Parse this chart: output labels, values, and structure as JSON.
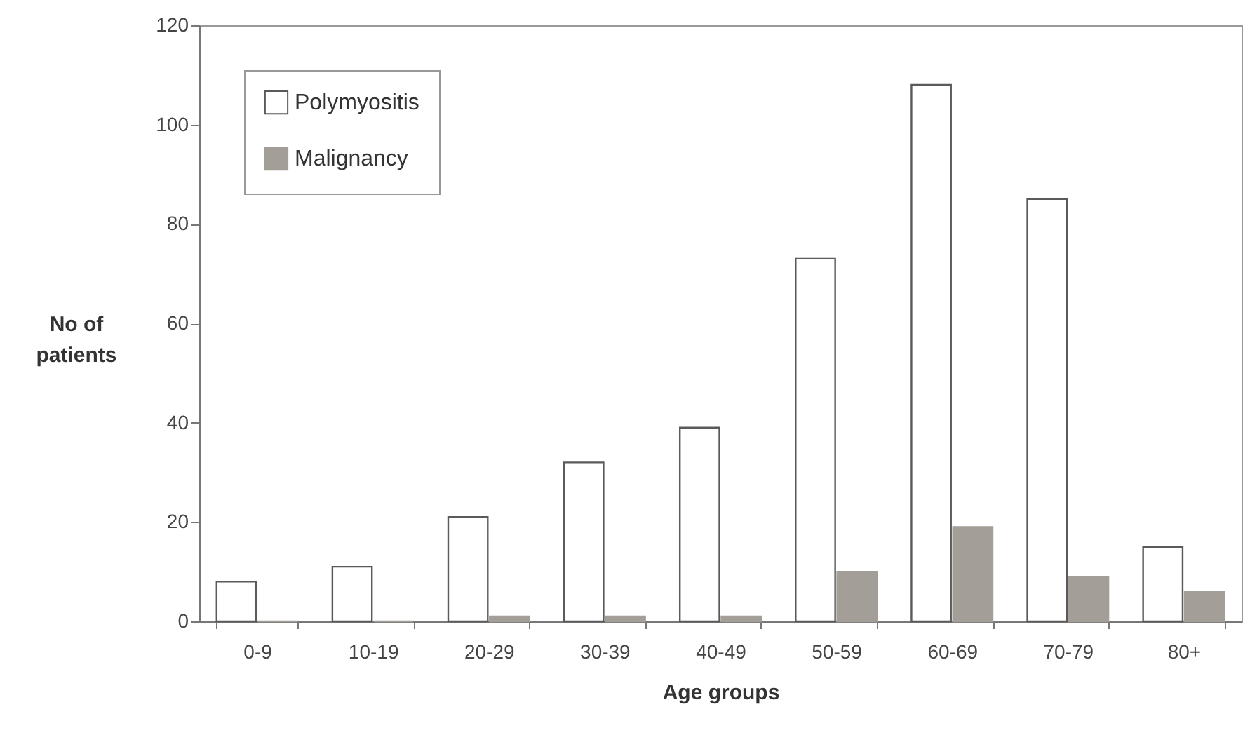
{
  "chart_data": {
    "type": "bar",
    "xlabel": "Age groups",
    "ylabel": "No of patients",
    "categories": [
      "0-9",
      "10-19",
      "20-29",
      "30-39",
      "40-49",
      "50-59",
      "60-69",
      "70-79",
      "80+"
    ],
    "series": [
      {
        "name": "Polymyositis",
        "color": "#ffffff",
        "values": [
          8,
          11,
          21,
          32,
          39,
          73,
          108,
          85,
          15
        ]
      },
      {
        "name": "Malignancy",
        "color": "#a39e97",
        "values": [
          0,
          0,
          1,
          1,
          1,
          10,
          19,
          9,
          6
        ]
      }
    ],
    "ylim": [
      0,
      120
    ],
    "yticks": [
      0,
      20,
      40,
      60,
      80,
      100,
      120
    ],
    "legend": "top left"
  }
}
